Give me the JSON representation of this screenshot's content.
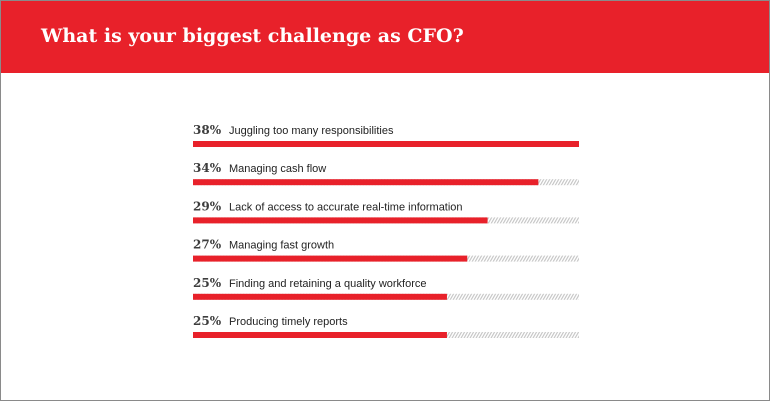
{
  "header": {
    "title": "What is your biggest challenge as CFO?"
  },
  "colors": {
    "accent": "#e8212a",
    "track": "#c4c4c4",
    "text": "#222222"
  },
  "chart_data": {
    "type": "bar",
    "orientation": "horizontal",
    "title": "What is your biggest challenge as CFO?",
    "categories": [
      "Juggling too many responsibilities",
      "Managing cash flow",
      "Lack of access to accurate real-time information",
      "Managing fast growth",
      "Finding and retaining a quality workforce",
      "Producing timely reports"
    ],
    "value_labels": [
      "38%",
      "34%",
      "29%",
      "27%",
      "25%",
      "25%"
    ],
    "values": [
      38,
      34,
      29,
      27,
      25,
      25
    ],
    "xlim": [
      0,
      38
    ],
    "grid": false,
    "legend": "none"
  }
}
